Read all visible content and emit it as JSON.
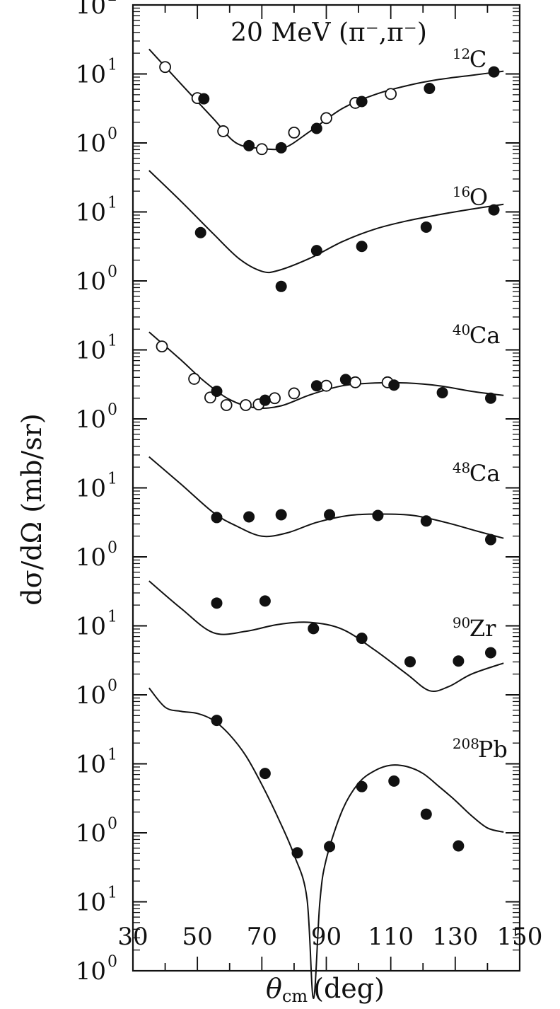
{
  "chart_data": {
    "type": "scatter",
    "title": "20 MeV (π⁻,π⁻)",
    "xlabel": "θ_cm (deg)",
    "xlabel_main": "θ",
    "xlabel_sub": "cm",
    "xlabel_unit": "(deg)",
    "ylabel": "dσ/dΩ (mb/sr)",
    "xlim": [
      30,
      150
    ],
    "x_ticks": [
      "30",
      "50",
      "70",
      "90",
      "110",
      "130",
      "150"
    ],
    "y_scale": "log",
    "y_ticks": [
      {
        "base": "10",
        "exp": "0"
      },
      {
        "base": "10",
        "exp": "1"
      },
      {
        "base": "10",
        "exp": "0"
      },
      {
        "base": "10",
        "exp": "1"
      },
      {
        "base": "10",
        "exp": "0"
      },
      {
        "base": "10",
        "exp": "1"
      },
      {
        "base": "10",
        "exp": "0"
      },
      {
        "base": "10",
        "exp": "1"
      },
      {
        "base": "10",
        "exp": "0"
      },
      {
        "base": "10",
        "exp": "1"
      },
      {
        "base": "10",
        "exp": "0"
      },
      {
        "base": "10",
        "exp": "1"
      },
      {
        "base": "10",
        "exp": "0"
      },
      {
        "base": "10",
        "exp": "1"
      },
      {
        "base": "10",
        "exp": "2"
      }
    ],
    "y_decade_count": 14,
    "series": [
      {
        "name": "12C",
        "mass": "12",
        "element": "C",
        "label_x": 130,
        "label_y": 13.1,
        "curve": [
          [
            35,
            13.36
          ],
          [
            45,
            12.85
          ],
          [
            55,
            12.35
          ],
          [
            62,
            12.0
          ],
          [
            70,
            11.92
          ],
          [
            77,
            11.93
          ],
          [
            85,
            12.17
          ],
          [
            95,
            12.5
          ],
          [
            105,
            12.7
          ],
          [
            115,
            12.83
          ],
          [
            125,
            12.92
          ],
          [
            135,
            12.98
          ],
          [
            145,
            13.04
          ]
        ],
        "filled": [
          [
            52,
            12.64
          ],
          [
            66,
            11.96
          ],
          [
            76,
            11.93
          ],
          [
            87,
            12.21
          ],
          [
            101,
            12.6
          ],
          [
            122,
            12.79
          ],
          [
            142,
            13.03
          ]
        ],
        "open": [
          [
            40,
            13.1
          ],
          [
            50,
            12.65
          ],
          [
            58,
            12.17
          ],
          [
            70,
            11.91
          ],
          [
            80,
            12.15
          ],
          [
            90,
            12.36
          ],
          [
            99,
            12.58
          ],
          [
            110,
            12.71
          ]
        ]
      },
      {
        "name": "16O",
        "mass": "16",
        "element": "O",
        "label_x": 130,
        "label_y": 11.1,
        "curve": [
          [
            35,
            11.6
          ],
          [
            45,
            11.15
          ],
          [
            55,
            10.68
          ],
          [
            63,
            10.32
          ],
          [
            70,
            10.14
          ],
          [
            75,
            10.15
          ],
          [
            85,
            10.33
          ],
          [
            95,
            10.57
          ],
          [
            105,
            10.75
          ],
          [
            115,
            10.87
          ],
          [
            125,
            10.96
          ],
          [
            135,
            11.04
          ],
          [
            145,
            11.11
          ]
        ],
        "filled": [
          [
            51,
            10.7
          ],
          [
            76,
            9.92
          ],
          [
            87,
            10.44
          ],
          [
            101,
            10.5
          ],
          [
            121,
            10.78
          ],
          [
            142,
            11.03
          ]
        ],
        "open": []
      },
      {
        "name": "40Ca",
        "mass": "40",
        "element": "Ca",
        "label_x": 130,
        "label_y": 9.1,
        "curve": [
          [
            35,
            9.26
          ],
          [
            45,
            8.85
          ],
          [
            52,
            8.55
          ],
          [
            60,
            8.28
          ],
          [
            68,
            8.16
          ],
          [
            76,
            8.19
          ],
          [
            85,
            8.35
          ],
          [
            95,
            8.48
          ],
          [
            105,
            8.52
          ],
          [
            115,
            8.52
          ],
          [
            125,
            8.48
          ],
          [
            135,
            8.4
          ],
          [
            145,
            8.34
          ]
        ],
        "filled": [
          [
            56,
            8.4
          ],
          [
            71,
            8.27
          ],
          [
            87,
            8.48
          ],
          [
            96,
            8.57
          ],
          [
            111,
            8.49
          ],
          [
            126,
            8.38
          ],
          [
            141,
            8.3
          ]
        ],
        "open": [
          [
            39,
            9.05
          ],
          [
            49,
            8.58
          ],
          [
            54,
            8.31
          ],
          [
            59,
            8.2
          ],
          [
            65,
            8.2
          ],
          [
            69,
            8.21
          ],
          [
            74,
            8.3
          ],
          [
            80,
            8.37
          ],
          [
            90,
            8.48
          ],
          [
            99,
            8.53
          ],
          [
            109,
            8.53
          ]
        ]
      },
      {
        "name": "48Ca",
        "mass": "48",
        "element": "Ca",
        "label_x": 130,
        "label_y": 7.1,
        "curve": [
          [
            35,
            7.45
          ],
          [
            45,
            7.05
          ],
          [
            55,
            6.64
          ],
          [
            62,
            6.45
          ],
          [
            70,
            6.3
          ],
          [
            78,
            6.35
          ],
          [
            87,
            6.5
          ],
          [
            97,
            6.6
          ],
          [
            107,
            6.62
          ],
          [
            117,
            6.6
          ],
          [
            127,
            6.5
          ],
          [
            137,
            6.37
          ],
          [
            145,
            6.27
          ]
        ],
        "filled": [
          [
            56,
            6.57
          ],
          [
            66,
            6.58
          ],
          [
            76,
            6.61
          ],
          [
            91,
            6.61
          ],
          [
            106,
            6.6
          ],
          [
            121,
            6.52
          ],
          [
            141,
            6.25
          ]
        ],
        "open": []
      },
      {
        "name": "90Zr",
        "mass": "90",
        "element": "Zr",
        "label_x": 130,
        "label_y": 4.85,
        "curve": [
          [
            35,
            5.65
          ],
          [
            45,
            5.25
          ],
          [
            55,
            4.9
          ],
          [
            65,
            4.92
          ],
          [
            75,
            5.02
          ],
          [
            85,
            5.05
          ],
          [
            95,
            4.95
          ],
          [
            105,
            4.65
          ],
          [
            115,
            4.3
          ],
          [
            122,
            4.06
          ],
          [
            128,
            4.12
          ],
          [
            135,
            4.3
          ],
          [
            145,
            4.46
          ]
        ],
        "filled": [
          [
            56,
            5.33
          ],
          [
            71,
            5.36
          ],
          [
            86,
            4.96
          ],
          [
            101,
            4.82
          ],
          [
            116,
            4.48
          ],
          [
            131,
            4.49
          ],
          [
            141,
            4.61
          ]
        ],
        "open": []
      },
      {
        "name": "208Pb",
        "mass": "208",
        "element": "Pb",
        "label_x": 130,
        "label_y": 3.1,
        "curve": [
          [
            35,
            4.1
          ],
          [
            40,
            3.82
          ],
          [
            45,
            3.76
          ],
          [
            50,
            3.73
          ],
          [
            55,
            3.63
          ],
          [
            60,
            3.42
          ],
          [
            65,
            3.12
          ],
          [
            70,
            2.7
          ],
          [
            75,
            2.22
          ],
          [
            80,
            1.68
          ],
          [
            84,
            1.05
          ],
          [
            86,
            -0.4
          ],
          [
            88,
            1.0
          ],
          [
            90,
            1.62
          ],
          [
            95,
            2.33
          ],
          [
            100,
            2.72
          ],
          [
            105,
            2.9
          ],
          [
            110,
            2.98
          ],
          [
            115,
            2.96
          ],
          [
            120,
            2.86
          ],
          [
            125,
            2.67
          ],
          [
            130,
            2.47
          ],
          [
            135,
            2.25
          ],
          [
            140,
            2.07
          ],
          [
            145,
            2.01
          ]
        ],
        "filled": [
          [
            56,
            3.63
          ],
          [
            71,
            2.86
          ],
          [
            81,
            1.71
          ],
          [
            91,
            1.8
          ],
          [
            101,
            2.67
          ],
          [
            111,
            2.75
          ],
          [
            121,
            2.27
          ],
          [
            131,
            1.81
          ]
        ],
        "open": []
      }
    ]
  }
}
